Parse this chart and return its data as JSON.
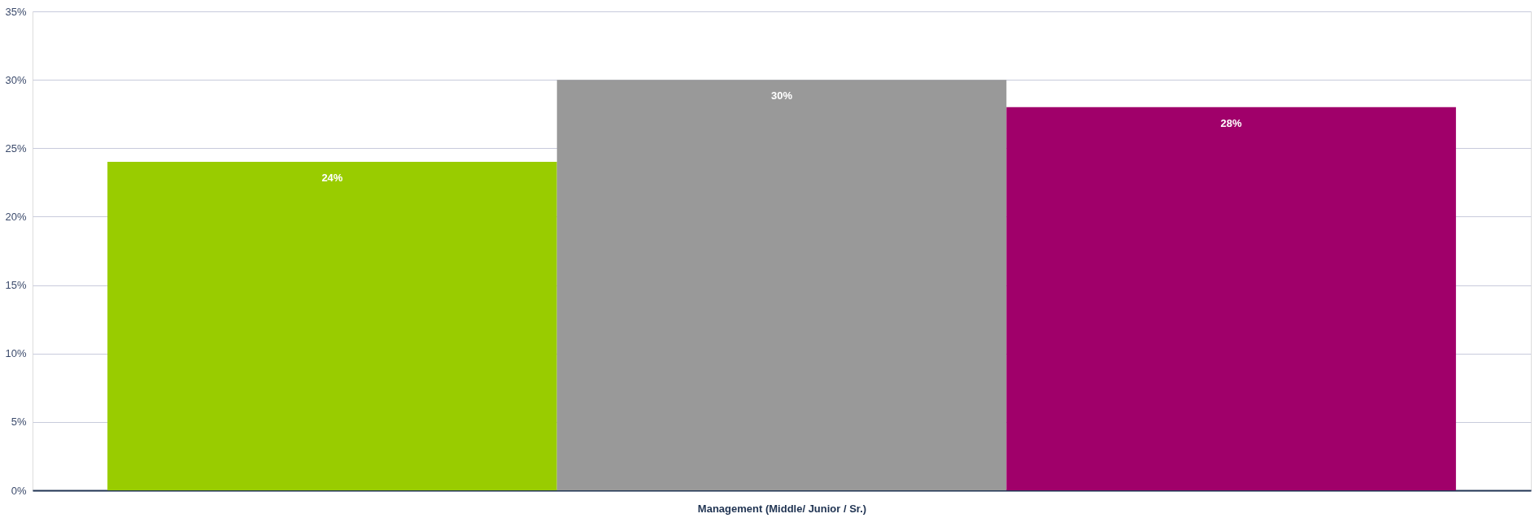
{
  "chart_data": {
    "type": "bar",
    "xlabel": "Management (Middle/ Junior / Sr.)",
    "categories": [
      null
    ],
    "series": [
      {
        "color": "#99cc00",
        "values": [
          24
        ],
        "value_labels": [
          "24%"
        ]
      },
      {
        "color": "#999999",
        "values": [
          30
        ],
        "value_labels": [
          "30%"
        ]
      },
      {
        "color": "#a0006a",
        "values": [
          28
        ],
        "value_labels": [
          "28%"
        ]
      }
    ],
    "ylim": [
      0,
      35
    ],
    "yticks": [
      {
        "value": 0,
        "label": "0%"
      },
      {
        "value": 5,
        "label": "5%"
      },
      {
        "value": 10,
        "label": "10%"
      },
      {
        "value": 15,
        "label": "15%"
      },
      {
        "value": 20,
        "label": "20%"
      },
      {
        "value": 25,
        "label": "25%"
      },
      {
        "value": 30,
        "label": "30%"
      },
      {
        "value": 35,
        "label": "35%"
      }
    ],
    "grid": "y",
    "legend": false
  }
}
